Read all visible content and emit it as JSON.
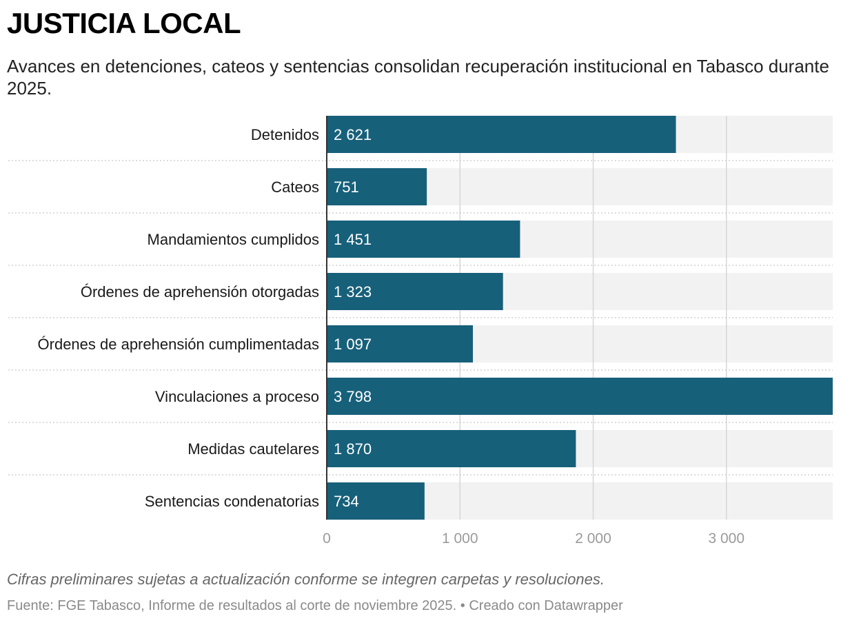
{
  "header": {
    "title": "JUSTICIA LOCAL",
    "subtitle": "Avances en detenciones, cateos y sentencias consolidan recuperación institucional en Tabasco durante 2025."
  },
  "chart_data": {
    "type": "bar",
    "orientation": "horizontal",
    "categories": [
      "Detenidos",
      "Cateos",
      "Mandamientos cumplidos",
      "Órdenes de aprehensión otorgadas",
      "Órdenes de aprehensión cumplimentadas",
      "Vinculaciones a proceso",
      "Medidas cautelares",
      "Sentencias condenatorias"
    ],
    "values": [
      2621,
      751,
      1451,
      1323,
      1097,
      3798,
      1870,
      734
    ],
    "value_labels": [
      "2 621",
      "751",
      "1 451",
      "1 323",
      "1 097",
      "3 798",
      "1 870",
      "734"
    ],
    "xlim": [
      0,
      3798
    ],
    "xticks": [
      0,
      1000,
      2000,
      3000
    ],
    "xtick_labels": [
      "0",
      "1 000",
      "2 000",
      "3 000"
    ],
    "grid": true,
    "bar_color": "#17607a",
    "track_color": "#f2f2f2"
  },
  "footer": {
    "notes": "Cifras preliminares sujetas a actualización conforme se integren carpetas y resoluciones.",
    "source": "Fuente: FGE Tabasco, Informe de resultados al corte de noviembre 2025.",
    "credit": " • Creado con Datawrapper"
  }
}
